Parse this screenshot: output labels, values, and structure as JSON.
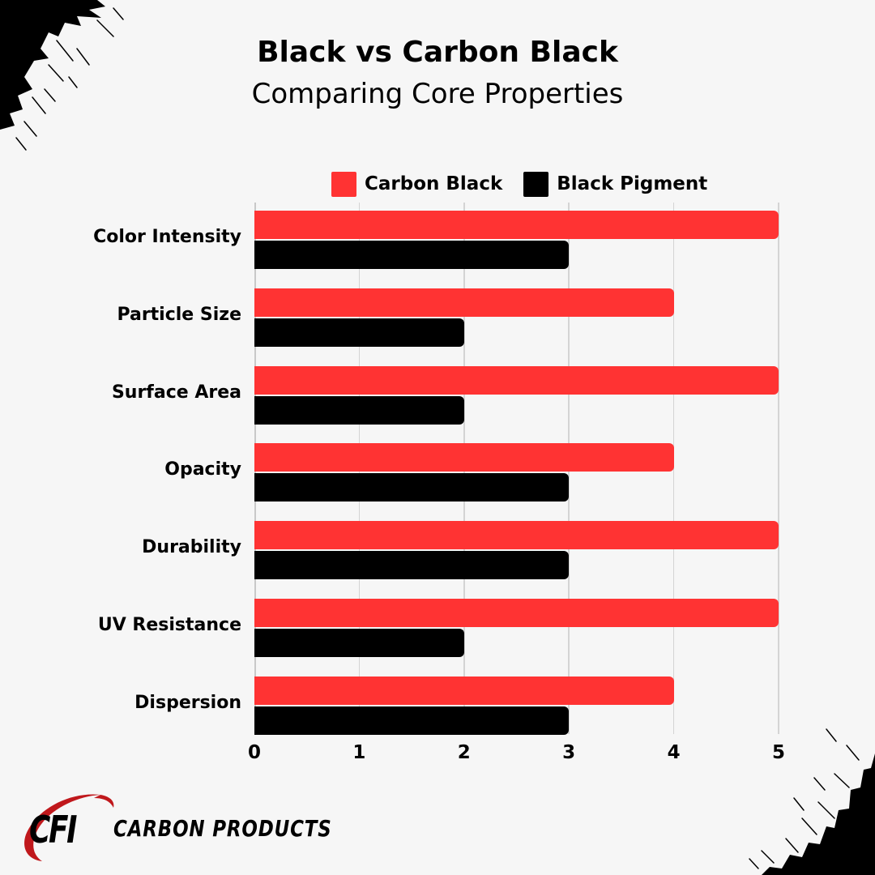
{
  "header": {
    "title": "Black vs Carbon Black",
    "subtitle": "Comparing Core Properties"
  },
  "legend": [
    {
      "label": "Carbon Black",
      "color": "#ff3333"
    },
    {
      "label": "Black Pigment",
      "color": "#000000"
    }
  ],
  "colors": {
    "carbon_black": "#ff3333",
    "black_pigment": "#000000",
    "background": "#f6f6f6",
    "grid": "#d4d4d4",
    "logo_swoosh": "#c0181c"
  },
  "axis": {
    "ticks": [
      "0",
      "1",
      "2",
      "3",
      "4",
      "5"
    ]
  },
  "logo": {
    "mark": "CFI",
    "text": "CARBON PRODUCTS"
  },
  "chart_data": {
    "type": "bar",
    "orientation": "horizontal",
    "title": "Black vs Carbon Black",
    "subtitle": "Comparing Core Properties",
    "categories": [
      "Color Intensity",
      "Particle Size",
      "Surface Area",
      "Opacity",
      "Durability",
      "UV Resistance",
      "Dispersion"
    ],
    "series": [
      {
        "name": "Carbon Black",
        "color": "#ff3333",
        "values": [
          5,
          4,
          5,
          4,
          5,
          5,
          4
        ]
      },
      {
        "name": "Black Pigment",
        "color": "#000000",
        "values": [
          3,
          2,
          2,
          3,
          3,
          2,
          3
        ]
      }
    ],
    "xlabel": "",
    "ylabel": "",
    "xlim": [
      0,
      5
    ],
    "xticks": [
      0,
      1,
      2,
      3,
      4,
      5
    ],
    "grid": true,
    "legend_position": "top"
  }
}
